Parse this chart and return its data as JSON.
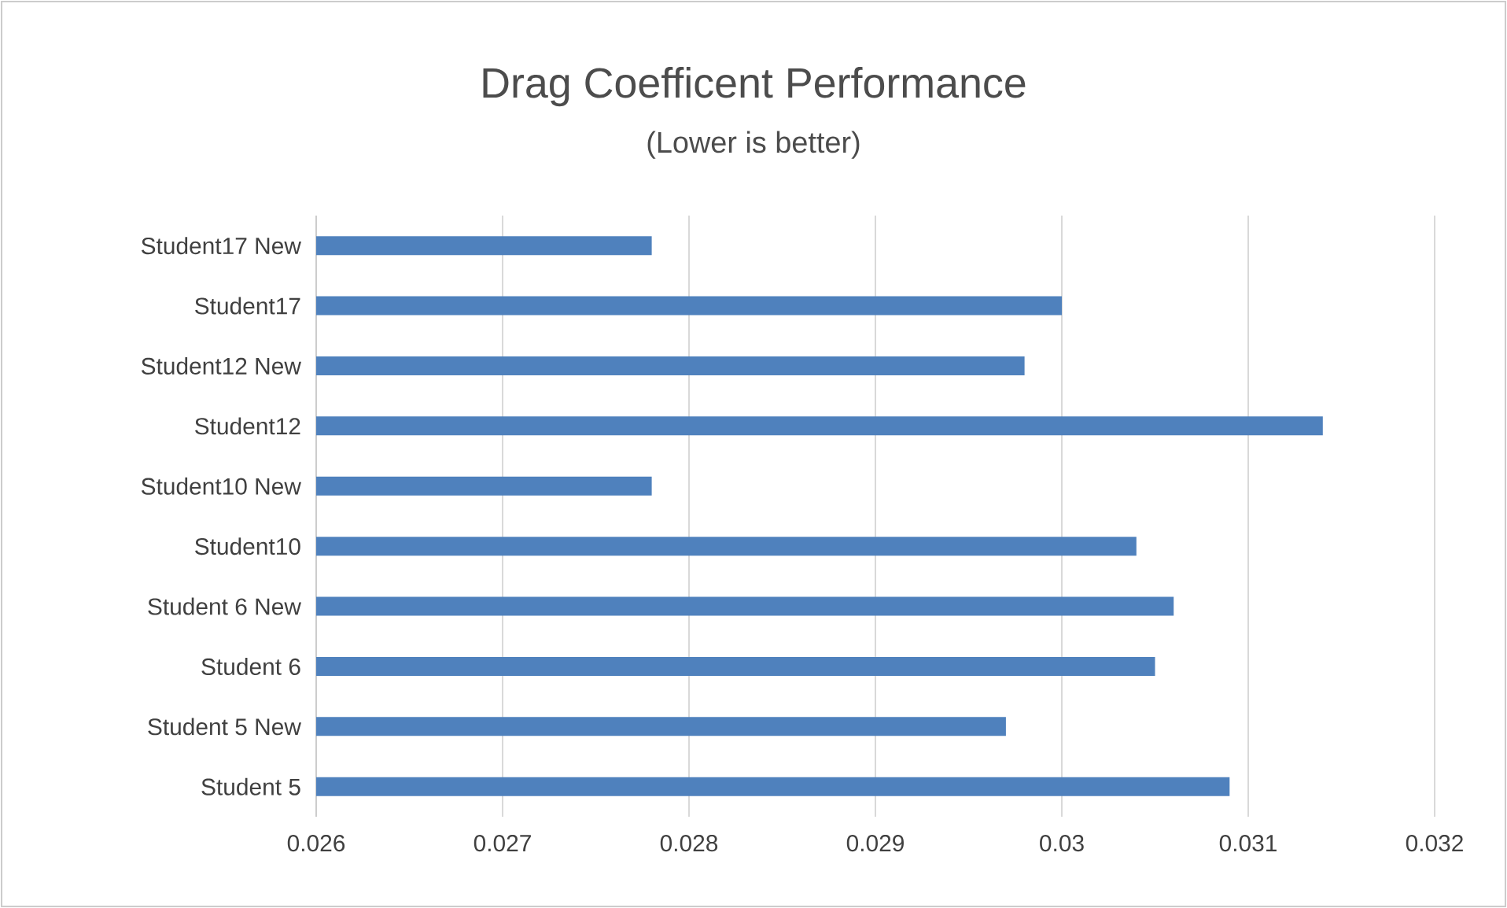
{
  "chart_data": {
    "type": "bar",
    "orientation": "horizontal",
    "title": "Drag Coefficent Performance",
    "subtitle": "(Lower is better)",
    "categories": [
      "Student17 New",
      "Student17",
      "Student12 New",
      "Student12",
      "Student10 New",
      "Student10",
      "Student 6 New",
      "Student 6",
      "Student 5 New",
      "Student 5"
    ],
    "values": [
      0.0278,
      0.03,
      0.0298,
      0.0314,
      0.0278,
      0.0304,
      0.0306,
      0.0305,
      0.0297,
      0.0309
    ],
    "color": "#4f81bd",
    "xlim": [
      0.026,
      0.032
    ],
    "xticks": [
      0.026,
      0.027,
      0.028,
      0.029,
      0.03,
      0.031,
      0.032
    ],
    "grid": "x"
  }
}
